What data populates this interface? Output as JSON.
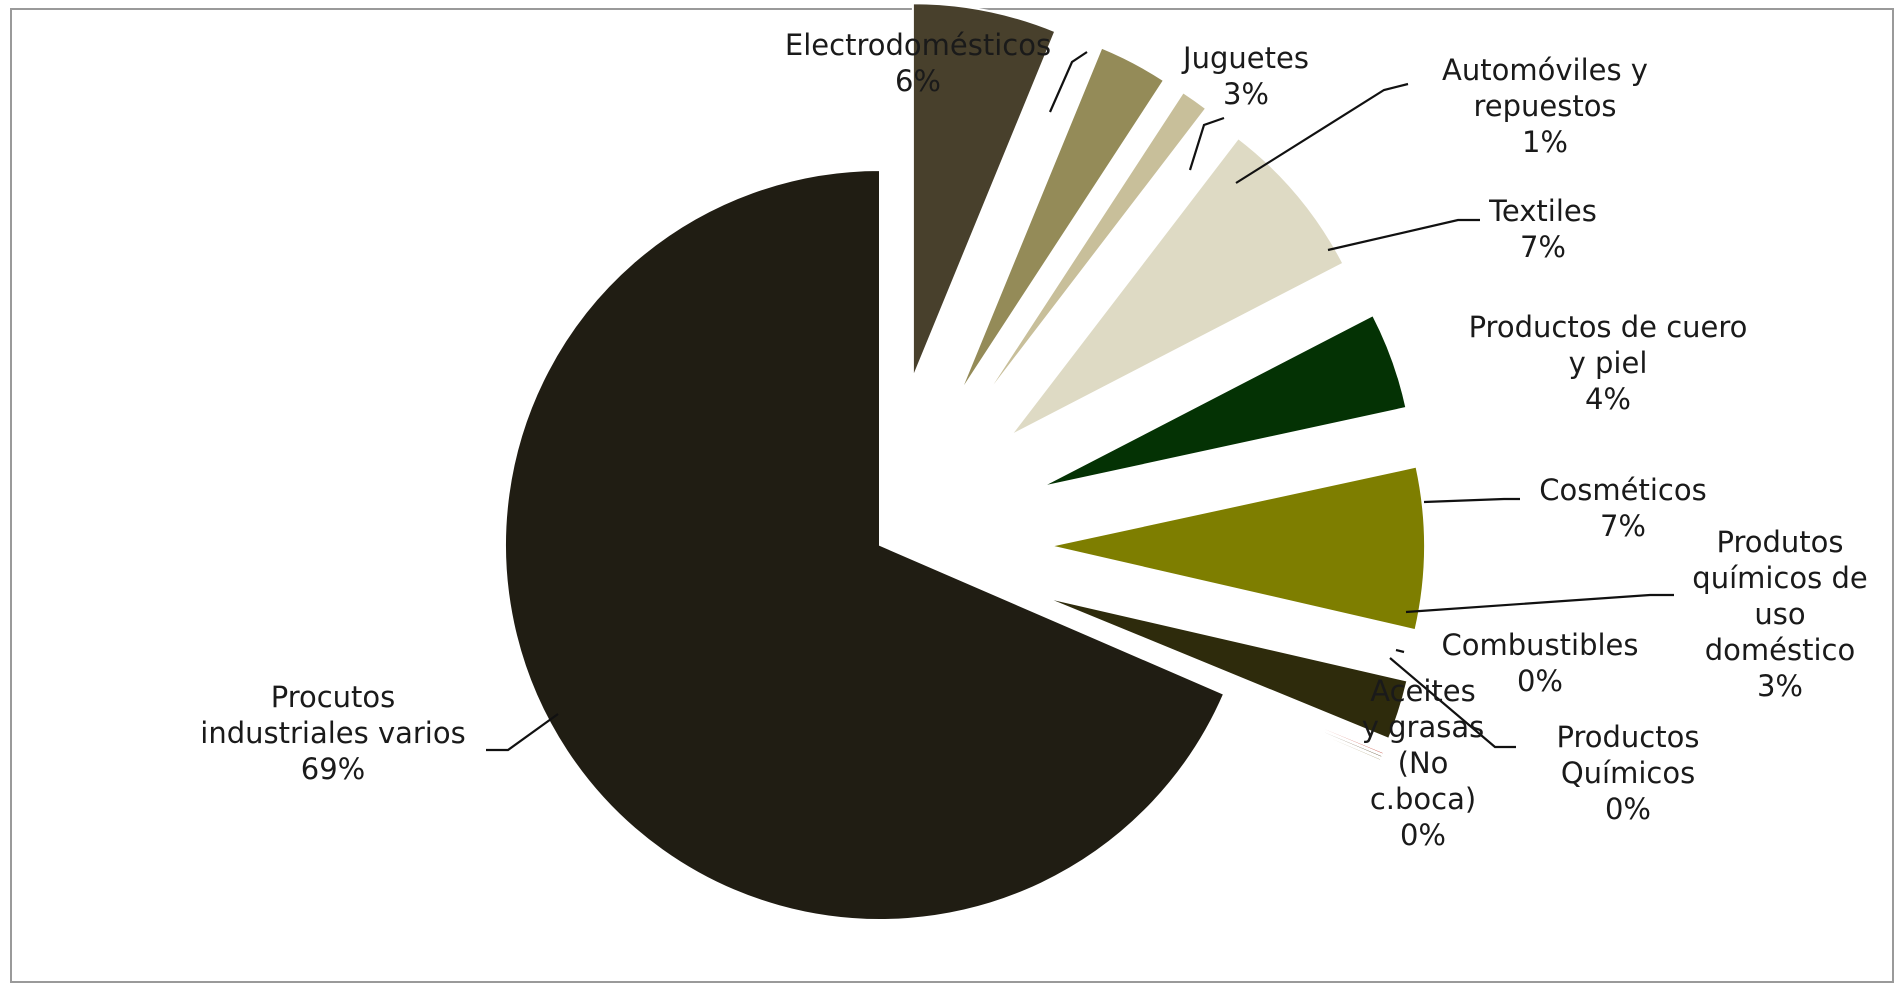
{
  "chart_data": {
    "type": "pie",
    "exploded": true,
    "start_angle_deg": 0,
    "direction": "clockwise",
    "slices": [
      {
        "name": "Electrodomésticos",
        "label_lines": [
          "Electrodomésticos"
        ],
        "percent_label": "6%",
        "value": 6.2,
        "color": "#48402c"
      },
      {
        "name": "Juguetes",
        "label_lines": [
          "Juguetes"
        ],
        "percent_label": "3%",
        "value": 3.0,
        "color": "#948b58"
      },
      {
        "name": "Automóviles y repuestos",
        "label_lines": [
          "Automóviles y",
          "repuestos"
        ],
        "percent_label": "1%",
        "value": 1.2,
        "color": "#c8bf9a"
      },
      {
        "name": "Textiles",
        "label_lines": [
          "Textiles"
        ],
        "percent_label": "7%",
        "value": 7.0,
        "color": "#dedac4"
      },
      {
        "name": "Productos de cuero y piel",
        "label_lines": [
          "Productos de cuero",
          "y piel"
        ],
        "percent_label": "4%",
        "value": 4.2,
        "color": "#043204"
      },
      {
        "name": "Cosméticos",
        "label_lines": [
          "Cosméticos"
        ],
        "percent_label": "7%",
        "value": 7.0,
        "color": "#7e7e00"
      },
      {
        "name": "Produtos químicos de uso doméstico",
        "label_lines": [
          "Produtos",
          "químicos de",
          "uso",
          "doméstico"
        ],
        "percent_label": "3%",
        "value": 2.6,
        "color": "#2e2b0c"
      },
      {
        "name": "Productos Químicos",
        "label_lines": [
          "Productos",
          "Químicos"
        ],
        "percent_label": "0%",
        "value": 0.1,
        "color": "#c44a3c"
      },
      {
        "name": "Aceites y grasas (No c.boca)",
        "label_lines": [
          "Aceites",
          "y grasas",
          "(No",
          "c.boca)"
        ],
        "percent_label": "0%",
        "value": 0.1,
        "color": "#5a4a2a"
      },
      {
        "name": "Combustibles",
        "label_lines": [
          "Combustibles"
        ],
        "percent_label": "0%",
        "value": 0.1,
        "color": "#9a8a5a"
      },
      {
        "name": "Procutos industriales varios",
        "label_lines": [
          "Procutos",
          "industriales varios"
        ],
        "percent_label": "69%",
        "value": 68.5,
        "color": "#201d13"
      }
    ]
  }
}
